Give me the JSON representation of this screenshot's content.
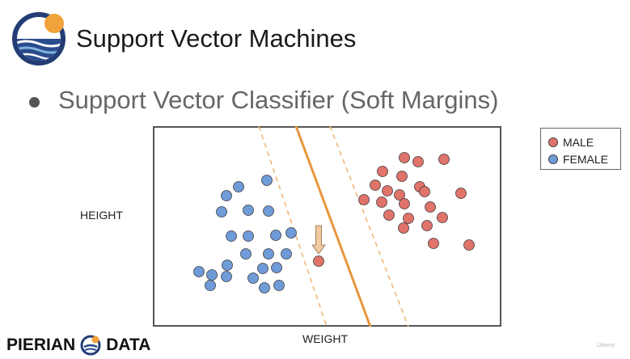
{
  "slide": {
    "title": "Support Vector Machines",
    "bullet": "Support Vector Classifier (Soft Margins)"
  },
  "brand": {
    "left": "PIERIAN",
    "right": "DATA",
    "watermark": "Udemy"
  },
  "colors": {
    "male": "#e0736a",
    "female": "#6f9bd8",
    "hyperplane": "#e8963c",
    "margin": "#f0b878",
    "arrow": "#f2c9a0"
  },
  "chart_data": {
    "type": "scatter",
    "xlabel": "WEIGHT",
    "ylabel": "HEIGHT",
    "xlim": [
      0,
      431
    ],
    "ylim": [
      0,
      248
    ],
    "legend_position": "outside-right-top",
    "series": [
      {
        "name": "MALE",
        "key": "male",
        "points": [
          [
            311,
            209
          ],
          [
            328,
            204
          ],
          [
            360,
            207
          ],
          [
            284,
            192
          ],
          [
            308,
            186
          ],
          [
            330,
            173
          ],
          [
            275,
            175
          ],
          [
            290,
            168
          ],
          [
            305,
            163
          ],
          [
            336,
            167
          ],
          [
            381,
            165
          ],
          [
            261,
            157
          ],
          [
            283,
            154
          ],
          [
            311,
            152
          ],
          [
            343,
            148
          ],
          [
            292,
            138
          ],
          [
            316,
            134
          ],
          [
            358,
            135
          ],
          [
            310,
            122
          ],
          [
            339,
            125
          ],
          [
            347,
            103
          ],
          [
            391,
            101
          ],
          [
            205,
            81
          ]
        ]
      },
      {
        "name": "FEMALE",
        "key": "female",
        "points": [
          [
            141,
            181
          ],
          [
            106,
            173
          ],
          [
            91,
            162
          ],
          [
            85,
            142
          ],
          [
            118,
            144
          ],
          [
            143,
            143
          ],
          [
            97,
            112
          ],
          [
            118,
            112
          ],
          [
            152,
            113
          ],
          [
            171,
            116
          ],
          [
            115,
            90
          ],
          [
            143,
            90
          ],
          [
            165,
            90
          ],
          [
            92,
            76
          ],
          [
            136,
            72
          ],
          [
            153,
            73
          ],
          [
            57,
            68
          ],
          [
            73,
            64
          ],
          [
            91,
            62
          ],
          [
            124,
            60
          ],
          [
            71,
            51
          ],
          [
            138,
            48
          ],
          [
            156,
            51
          ]
        ]
      }
    ],
    "decision_boundary": {
      "x_top": 177,
      "x_bottom": 269
    },
    "margins": [
      {
        "x_top": 131,
        "x_bottom": 215
      },
      {
        "x_top": 219,
        "x_bottom": 316
      }
    ],
    "annotation": {
      "type": "arrow",
      "points_to": [
        205,
        81
      ]
    }
  }
}
